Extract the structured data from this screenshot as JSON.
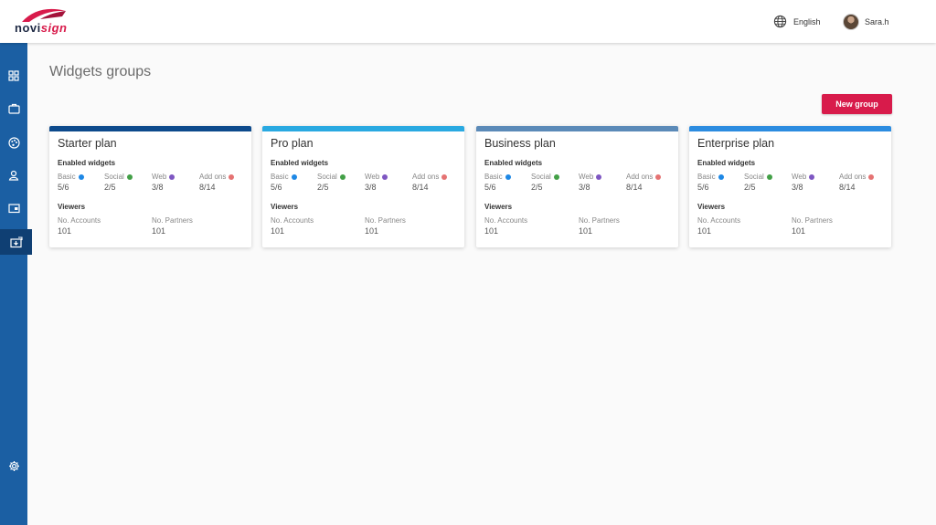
{
  "header": {
    "logo": {
      "text_primary": "novi",
      "text_accent": "sign",
      "colors": {
        "primary": "#1f2a44",
        "accent": "#d81b4b"
      }
    },
    "language": {
      "label": "English",
      "icon": "globe-icon"
    },
    "user": {
      "name": "Sara.h",
      "icon": "avatar"
    }
  },
  "sidebar": {
    "color": "#1b5fa3",
    "active_color": "#0f3f73",
    "items": [
      {
        "id": "dashboard",
        "icon": "dashboard-icon",
        "active": false
      },
      {
        "id": "briefcase",
        "icon": "briefcase-icon",
        "active": false
      },
      {
        "id": "palette",
        "icon": "palette-icon",
        "active": false
      },
      {
        "id": "users",
        "icon": "user-icon",
        "active": false
      },
      {
        "id": "media",
        "icon": "folder-icon",
        "active": false
      },
      {
        "id": "widgets",
        "icon": "widgets-icon",
        "active": true
      },
      {
        "id": "settings",
        "icon": "settings-gear-icon",
        "active": false
      }
    ]
  },
  "main": {
    "title": "Widgets groups",
    "new_group_label": "New group",
    "section_enabled_label": "Enabled widgets",
    "section_viewers_label": "Viewers",
    "widget_types": [
      {
        "name": "Basic",
        "color": "#1e88e5"
      },
      {
        "name": "Social",
        "color": "#43a047"
      },
      {
        "name": "Web",
        "color": "#7e57c2"
      },
      {
        "name": "Add ons",
        "color": "#e57373"
      }
    ],
    "viewer_fields": [
      "No. Accounts",
      "No. Partners"
    ],
    "cards": [
      {
        "title": "Starter plan",
        "color": "#0d4a8c",
        "widgets": [
          "5/6",
          "2/5",
          "3/8",
          "8/14"
        ],
        "accounts": "101",
        "partners": "101"
      },
      {
        "title": "Pro plan",
        "color": "#29a9e1",
        "widgets": [
          "5/6",
          "2/5",
          "3/8",
          "8/14"
        ],
        "accounts": "101",
        "partners": "101"
      },
      {
        "title": "Business plan",
        "color": "#5b8ab8",
        "widgets": [
          "5/6",
          "2/5",
          "3/8",
          "8/14"
        ],
        "accounts": "101",
        "partners": "101"
      },
      {
        "title": "Enterprise plan",
        "color": "#2c8ce0",
        "widgets": [
          "5/6",
          "2/5",
          "3/8",
          "8/14"
        ],
        "accounts": "101",
        "partners": "101"
      }
    ]
  }
}
